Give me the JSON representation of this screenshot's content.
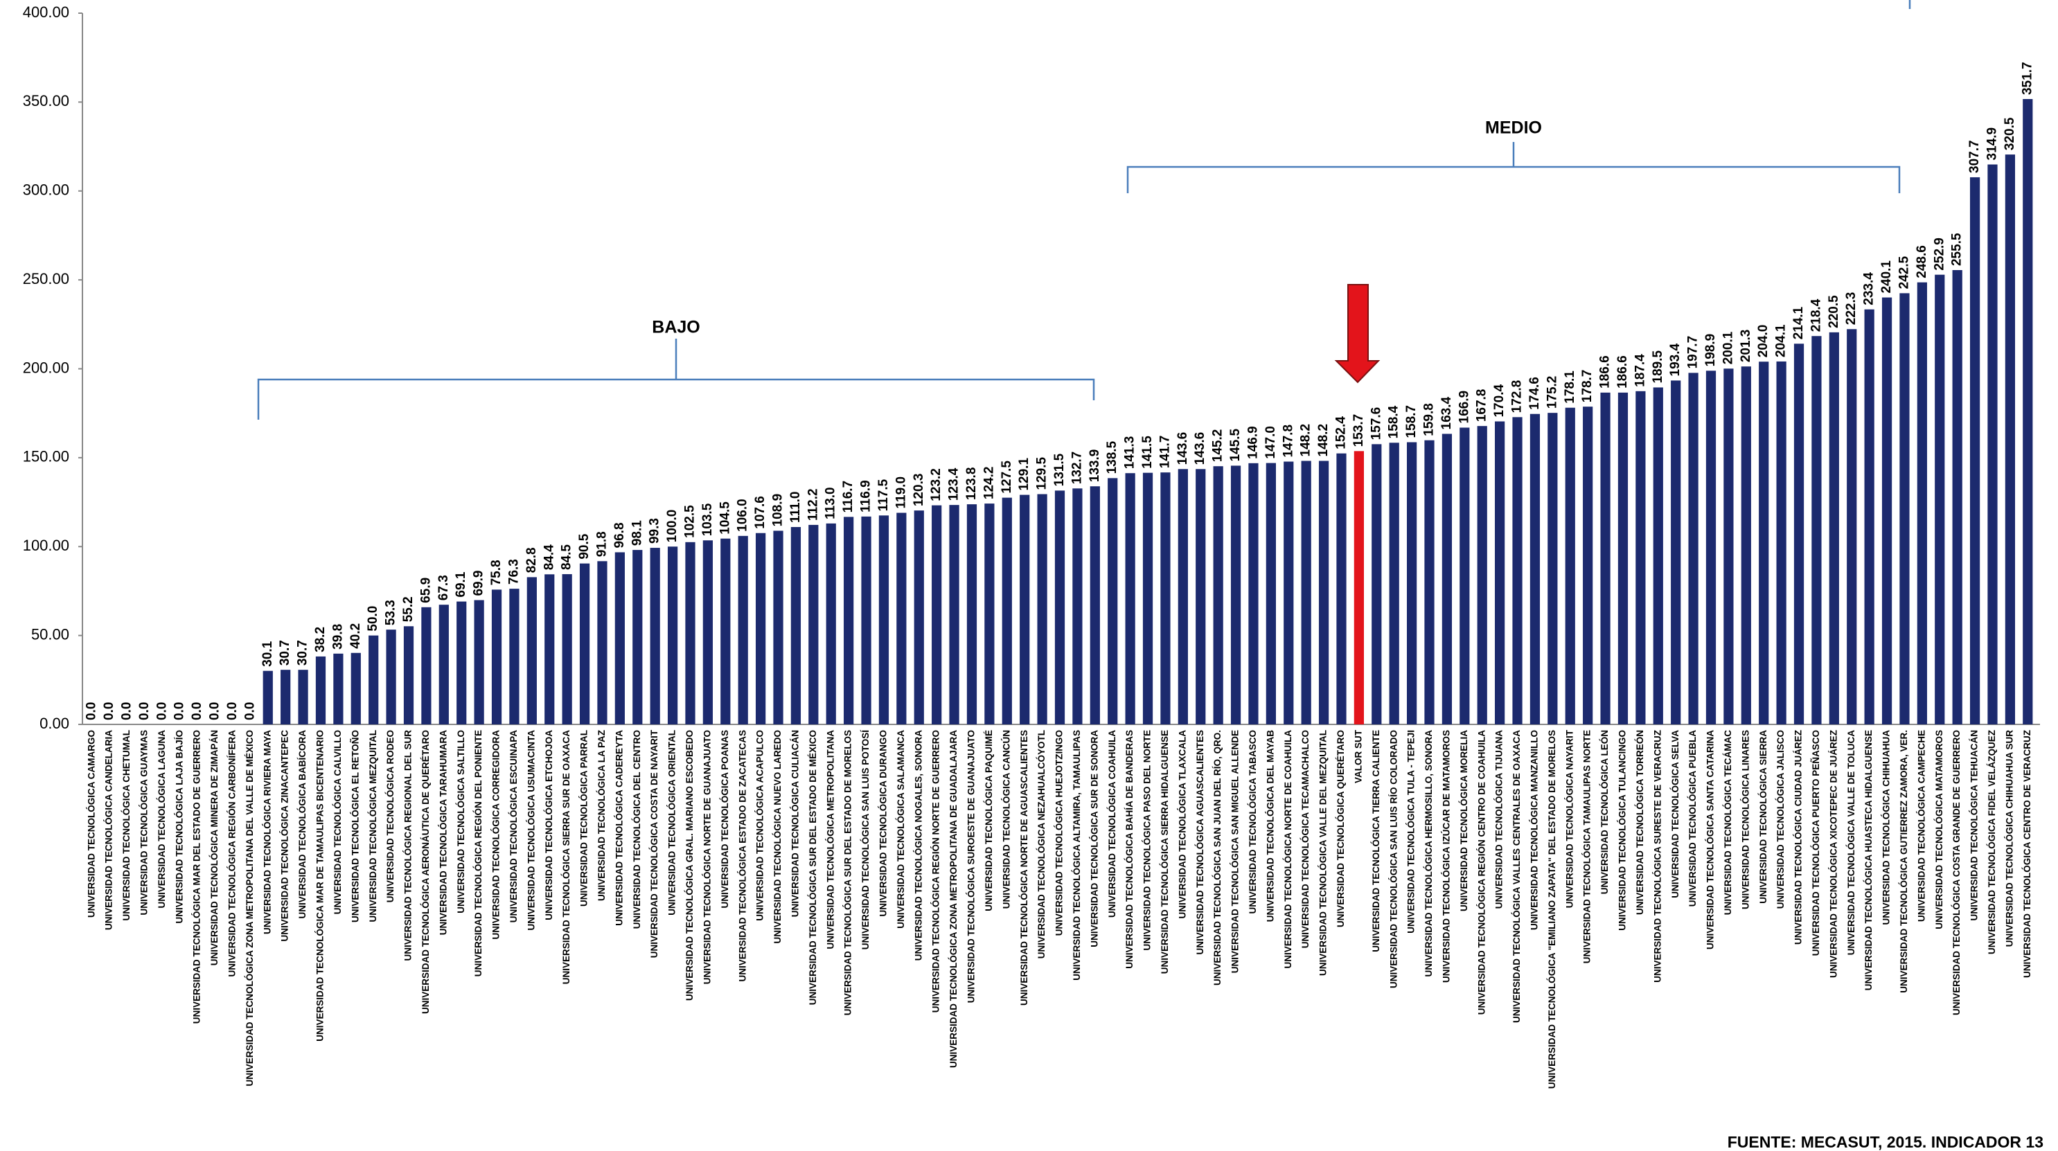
{
  "chart_data": {
    "type": "bar",
    "categories": [
      "UNIVERSIDAD TECNOLÓGICA CAMARGO",
      "UNIVERSIDAD TECNOLÓGICA CANDELARIA",
      "UNIVERSIDAD TECNOLÓGICA CHETUMAL",
      "UNIVERSIDAD TECNOLÓGICA GUAYMAS",
      "UNIVERSIDAD TECNOLÓGICA LAGUNA",
      "UNIVERSIDAD TECNOLÓGICA LAJA BAJÍO",
      "UNIVERSIDAD TECNOLÓGICA MAR DEL ESTADO DE GUERRERO",
      "UNIVERSIDAD TECNOLÓGICA MINERA DE ZIMAPÁN",
      "UNIVERSIDAD TECNOLÓGICA REGIÓN CARBONÍFERA",
      "UNIVERSIDAD TECNOLÓGICA ZONA METROPOLITANA DEL VALLE DE MÉXICO",
      "UNIVERSIDAD TECNOLÓGICA RIVIERA MAYA",
      "UNIVERSIDAD TECNOLÓGICA ZINACANTEPEC",
      "UNIVERSIDAD TECNOLÓGICA BABÍCORA",
      "UNIVERSIDAD TECNOLÓGICA MAR DE TAMAULIPAS BICENTENARIO",
      "UNIVERSIDAD TECNOLÓGICA CALVILLO",
      "UNIVERSIDAD TECNOLÓGICA EL RETOÑO",
      "UNIVERSIDAD TECNOLÓGICA MEZQUITAL",
      "UNIVERSIDAD TECNOLÓGICA RODEO",
      "UNIVERSIDAD TECNOLÓGICA REGIONAL DEL SUR",
      "UNIVERSIDAD TECNOLÓGICA AERONÁUTICA DE QUERÉTARO",
      "UNIVERSIDAD TECNOLÓGICA TARAHUMARA",
      "UNIVERSIDAD TECNOLÓGICA SALTILLO",
      "UNIVERSIDAD TECNOLÓGICA REGIÓN DEL PONIENTE",
      "UNIVERSIDAD TECNOLÓGICA CORREGIDORA",
      "UNIVERSIDAD TECNOLÓGICA ESCUINAPA",
      "UNIVERSIDAD TECNOLÓGICA USUMACINTA",
      "UNIVERSIDAD TECNOLÓGICA ETCHOJOA",
      "UNIVERSIDAD TECNOLÓGICA SIERRA SUR DE OAXACA",
      "UNIVERSIDAD TECNOLÓGICA PARRAL",
      "UNIVERSIDAD TECNOLÓGICA LA PAZ",
      "UNIVERSIDAD TECNOLÓGICA CADEREYTA",
      "UNIVERSIDAD TECNOLÓGICA DEL CENTRO",
      "UNIVERSIDAD TECNOLÓGICA COSTA DE NAYARIT",
      "UNIVERSIDAD TECNOLÓGICA ORIENTAL",
      "UNIVERSIDAD TECNOLÓGICA GRAL. MARIANO ESCOBEDO",
      "UNIVERSIDAD TECNOLÓGICA NORTE DE GUANAJUATO",
      "UNIVERSIDAD TECNOLÓGICA POANAS",
      "UNIVERSIDAD TECNOLÓGICA ESTADO DE ZACATECAS",
      "UNIVERSIDAD TECNOLÓGICA ACAPULCO",
      "UNIVERSIDAD TECNOLÓGICA NUEVO LAREDO",
      "UNIVERSIDAD TECNOLÓGICA CULIACÁN",
      "UNIVERSIDAD TECNOLÓGICA SUR DEL ESTADO DE MÉXICO",
      "UNIVERSIDAD TECNOLÓGICA METROPOLITANA",
      "UNIVERSIDAD TECNOLÓGICA SUR DEL ESTADO DE MORELOS",
      "UNIVERSIDAD TECNOLÓGICA SAN LUIS POTOSÍ",
      "UNIVERSIDAD TECNOLÓGICA DURANGO",
      "UNIVERSIDAD TECNOLÓGICA SALAMANCA",
      "UNIVERSIDAD TECNOLÓGICA NOGALES, SONORA",
      "UNIVERSIDAD TECNOLÓGICA REGIÓN NORTE DE GUERRERO",
      "UNIVERSIDAD TECNOLÓGICA ZONA METROPOLITANA DE GUADALAJARA",
      "UNIVERSIDAD TECNOLÓGICA SUROESTE DE GUANAJUATO",
      "UNIVERSIDAD TECNOLÓGICA PAQUIMÉ",
      "UNIVERSIDAD TECNOLÓGICA CANCÚN",
      "UNIVERSIDAD TECNOLÓGICA NORTE DE AGUASCALIENTES",
      "UNIVERSIDAD TECNOLÓGICA NEZAHUALCÓYOTL",
      "UNIVERSIDAD TECNOLÓGICA HUEJOTZINGO",
      "UNIVERSIDAD TECNOLÓGICA ALTAMIRA, TAMAULIPAS",
      "UNIVERSIDAD TECNOLÓGICA SUR DE SONORA",
      "UNIVERSIDAD TECNOLÓGICA COAHUILA",
      "UNIVERSIDAD TECNOLÓGICA BAHÍA DE BANDERAS",
      "UNIVERSIDAD TECNOLÓGICA PASO DEL NORTE",
      "UNIVERSIDAD TECNOLÓGICA SIERRA HIDALGUENSE",
      "UNIVERSIDAD TECNOLÓGICA TLAXCALA",
      "UNIVERSIDAD TECNOLÓGICA AGUASCALIENTES",
      "UNIVERSIDAD TECNOLÓGICA SAN JUAN DEL RÍO, QRO.",
      "UNIVERSIDAD TECNOLÓGICA SAN MIGUEL ALLENDE",
      "UNIVERSIDAD TECNOLÓGICA TABASCO",
      "UNIVERSIDAD TECNOLÓGICA DEL MAYAB",
      "UNIVERSIDAD TECNOLÓGICA NORTE DE COAHUILA",
      "UNIVERSIDAD TECNOLÓGICA TECAMACHALCO",
      "UNIVERSIDAD TECNOLÓGICA VALLE DEL MEZQUITAL",
      "UNIVERSIDAD TECNOLÓGICA QUERÉTARO",
      "VALOR SUT",
      "UNIVERSIDAD TECNOLÓGICA TIERRA CALIENTE",
      "UNIVERSIDAD TECNOLÓGICA SAN LUIS RÍO COLORADO",
      "UNIVERSIDAD TECNOLÓGICA TULA - TEPEJI",
      "UNIVERSIDAD TECNOLÓGICA HERMOSILLO, SONORA",
      "UNIVERSIDAD TECNOLÓGICA IZÚCAR DE MATAMOROS",
      "UNIVERSIDAD TECNOLÓGICA MORELIA",
      "UNIVERSIDAD TECNOLÓGICA REGIÓN CENTRO DE COAHUILA",
      "UNIVERSIDAD TECNOLÓGICA TIJUANA",
      "UNIVERSIDAD TECNOLÓGICA VALLES CENTRALES DE OAXACA",
      "UNIVERSIDAD TECNOLÓGICA MANZANILLO",
      "UNIVERSIDAD TECNOLÓGICA \"EMILIANO ZAPATA\" DEL ESTADO DE MORELOS",
      "UNIVERSIDAD TECNOLÓGICA NAYARIT",
      "UNIVERSIDAD TECNOLÓGICA TAMAULIPAS NORTE",
      "UNIVERSIDAD TECNOLÓGICA LEÓN",
      "UNIVERSIDAD TECNOLÓGICA TULANCINGO",
      "UNIVERSIDAD TECNOLÓGICA TORREÓN",
      "UNIVERSIDAD TECNOLÓGICA SURESTE DE VERACRUZ",
      "UNIVERSIDAD TECNOLÓGICA SELVA",
      "UNIVERSIDAD TECNOLÓGICA PUEBLA",
      "UNIVERSIDAD TECNOLÓGICA SANTA CATARINA",
      "UNIVERSIDAD TECNOLÓGICA TECÁMAC",
      "UNIVERSIDAD TECNOLÓGICA LINARES",
      "UNIVERSIDAD TECNOLÓGICA SIERRA",
      "UNIVERSIDAD TECNOLÓGICA JALISCO",
      "UNIVERSIDAD TECNOLÓGICA CIUDAD JUÁREZ",
      "UNIVERSIDAD TECNOLÓGICA PUERTO PEÑASCO",
      "UNIVERSIDAD TECNOLÓGICA XICOTEPEC DE JUÁREZ",
      "UNIVERSIDAD TECNOLÓGICA VALLE DE TOLUCA",
      "UNIVERSIDAD TECNOLÓGICA HUASTECA HIDALGUENSE",
      "UNIVERSIDAD TECNOLÓGICA CHIHUAHUA",
      "UNIVERSIDAD TECNOLÓGICA GUTIERREZ ZAMORA, VER.",
      "UNIVERSIDAD TECNOLÓGICA CAMPECHE",
      "UNIVERSIDAD TECNOLÓGICA MATAMOROS",
      "UNIVERSIDAD TECNOLÓGICA COSTA GRANDE DE GUERRERO",
      "UNIVERSIDAD TECNOLÓGICA TEHUACÁN",
      "UNIVERSIDAD TECNOLÓGICA FIDEL VELÁZQUEZ",
      "UNIVERSIDAD TECNOLÓGICA CHIHUAHUA SUR",
      "UNIVERSIDAD TECNOLÓGICA CENTRO DE VERACRUZ"
    ],
    "values": [
      0,
      0,
      0,
      0,
      0,
      0,
      0,
      0,
      0,
      0,
      30.1,
      30.7,
      30.7,
      38.2,
      39.8,
      40.2,
      50.0,
      53.3,
      55.2,
      65.9,
      67.3,
      69.1,
      69.9,
      75.8,
      76.3,
      82.8,
      84.4,
      84.5,
      90.5,
      91.8,
      96.8,
      98.1,
      99.3,
      100.0,
      102.5,
      103.5,
      104.5,
      106.0,
      107.6,
      108.9,
      111.0,
      112.2,
      113.0,
      116.7,
      116.9,
      117.5,
      119.0,
      120.3,
      123.2,
      123.4,
      123.8,
      124.2,
      127.5,
      129.1,
      129.5,
      131.5,
      132.7,
      133.9,
      138.5,
      141.3,
      141.5,
      141.7,
      143.6,
      143.6,
      145.2,
      145.5,
      146.9,
      147.0,
      147.8,
      148.2,
      148.2,
      152.4,
      153.7,
      157.6,
      158.4,
      158.7,
      159.8,
      163.4,
      166.9,
      167.8,
      170.4,
      172.8,
      174.6,
      175.2,
      178.1,
      178.7,
      186.6,
      186.6,
      187.4,
      189.5,
      193.4,
      197.7,
      198.9,
      200.1,
      201.3,
      204.0,
      204.1,
      214.1,
      218.4,
      220.5,
      222.3,
      233.4,
      240.1,
      242.5,
      248.6,
      252.9,
      255.5,
      307.7,
      314.9,
      320.5,
      351.7
    ],
    "value_labels": [
      "0.0",
      "0.0",
      "0.0",
      "0.0",
      "0.0",
      "0.0",
      "0.0",
      "0.0",
      "0.0",
      "0.0",
      "30.1",
      "30.7",
      "30.7",
      "38.2",
      "39.8",
      "40.2",
      "50.0",
      "53.3",
      "55.2",
      "65.9",
      "67.3",
      "69.1",
      "69.9",
      "75.8",
      "76.3",
      "82.8",
      "84.4",
      "84.5",
      "90.5",
      "91.8",
      "96.8",
      "98.1",
      "99.3",
      "100.0",
      "102.5",
      "103.5",
      "104.5",
      "106.0",
      "107.6",
      "108.9",
      "111.0",
      "112.2",
      "113.0",
      "116.7",
      "116.9",
      "117.5",
      "119.0",
      "120.3",
      "123.2",
      "123.4",
      "123.8",
      "124.2",
      "127.5",
      "129.1",
      "129.5",
      "131.5",
      "132.7",
      "133.9",
      "138.5",
      "141.3",
      "141.5",
      "141.7",
      "143.6",
      "143.6",
      "145.2",
      "145.5",
      "146.9",
      "147.0",
      "147.8",
      "148.2",
      "148.2",
      "152.4",
      "153.7",
      "157.6",
      "158.4",
      "158.7",
      "159.8",
      "163.4",
      "166.9",
      "167.8",
      "170.4",
      "172.8",
      "174.6",
      "175.2",
      "178.1",
      "178.7",
      "186.6",
      "186.6",
      "187.4",
      "189.5",
      "193.4",
      "197.7",
      "198.9",
      "200.1",
      "201.3",
      "204.0",
      "204.1",
      "214.1",
      "218.4",
      "220.5",
      "222.3",
      "233.4",
      "240.1",
      "242.5",
      "248.6",
      "252.9",
      "255.5",
      "307.7",
      "314.9",
      "320.5",
      "351.7"
    ],
    "colors": [
      "#1c2a6e",
      "#1c2a6e",
      "#1c2a6e",
      "#1c2a6e",
      "#1c2a6e",
      "#1c2a6e",
      "#1c2a6e",
      "#1c2a6e",
      "#1c2a6e",
      "#1c2a6e",
      "#1c2a6e",
      "#1c2a6e",
      "#1c2a6e",
      "#1c2a6e",
      "#1c2a6e",
      "#1c2a6e",
      "#1c2a6e",
      "#1c2a6e",
      "#1c2a6e",
      "#1c2a6e",
      "#1c2a6e",
      "#1c2a6e",
      "#1c2a6e",
      "#1c2a6e",
      "#1c2a6e",
      "#1c2a6e",
      "#1c2a6e",
      "#1c2a6e",
      "#1c2a6e",
      "#1c2a6e",
      "#1c2a6e",
      "#1c2a6e",
      "#1c2a6e",
      "#1c2a6e",
      "#1c2a6e",
      "#1c2a6e",
      "#1c2a6e",
      "#1c2a6e",
      "#1c2a6e",
      "#1c2a6e",
      "#1c2a6e",
      "#1c2a6e",
      "#1c2a6e",
      "#1c2a6e",
      "#1c2a6e",
      "#1c2a6e",
      "#1c2a6e",
      "#1c2a6e",
      "#1c2a6e",
      "#1c2a6e",
      "#1c2a6e",
      "#1c2a6e",
      "#1c2a6e",
      "#1c2a6e",
      "#1c2a6e",
      "#1c2a6e",
      "#1c2a6e",
      "#1c2a6e",
      "#1c2a6e",
      "#1c2a6e",
      "#1c2a6e",
      "#1c2a6e",
      "#1c2a6e",
      "#1c2a6e",
      "#1c2a6e",
      "#1c2a6e",
      "#1c2a6e",
      "#1c2a6e",
      "#1c2a6e",
      "#1c2a6e",
      "#1c2a6e",
      "#1c2a6e",
      "#e3141b",
      "#1c2a6e",
      "#1c2a6e",
      "#1c2a6e",
      "#1c2a6e",
      "#1c2a6e",
      "#1c2a6e",
      "#1c2a6e",
      "#1c2a6e",
      "#1c2a6e",
      "#1c2a6e",
      "#1c2a6e",
      "#1c2a6e",
      "#1c2a6e",
      "#1c2a6e",
      "#1c2a6e",
      "#1c2a6e",
      "#1c2a6e",
      "#1c2a6e",
      "#1c2a6e",
      "#1c2a6e",
      "#1c2a6e",
      "#1c2a6e",
      "#1c2a6e",
      "#1c2a6e",
      "#1c2a6e",
      "#1c2a6e",
      "#1c2a6e",
      "#1c2a6e",
      "#1c2a6e",
      "#1c2a6e",
      "#1c2a6e",
      "#1c2a6e",
      "#1c2a6e",
      "#1c2a6e",
      "#1c2a6e",
      "#1c2a6e",
      "#1c2a6e",
      "#1c2a6e"
    ],
    "ylim": [
      0,
      400
    ],
    "yticks": [
      {
        "value": 0,
        "label": "0.00"
      },
      {
        "value": 50,
        "label": "50.00"
      },
      {
        "value": 100,
        "label": "100.00"
      },
      {
        "value": 150,
        "label": "150.00"
      },
      {
        "value": 200,
        "label": "200.00"
      },
      {
        "value": 250,
        "label": "250.00"
      },
      {
        "value": 300,
        "label": "300.00"
      },
      {
        "value": 350,
        "label": "350.00"
      },
      {
        "value": 400,
        "label": "400.00"
      }
    ],
    "annotations": [
      "BAJO",
      "MEDIO"
    ],
    "source": "FUENTE: MECASUT, 2015. INDICADOR 13"
  }
}
